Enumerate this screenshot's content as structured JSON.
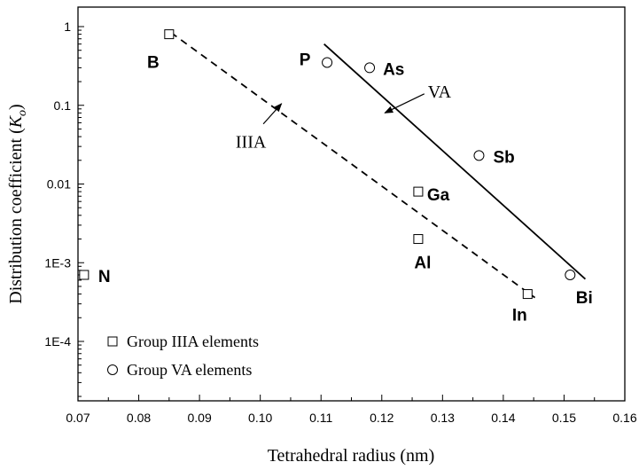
{
  "chart_data": {
    "type": "scatter",
    "xlabel": "Tetrahedral radius (nm)",
    "ylabel_main": "Distribution coefficient (",
    "ylabel_symbol": "K",
    "ylabel_sub": "o",
    "ylabel_close": ")",
    "xlim": [
      0.07,
      0.16
    ],
    "ylim": [
      0.0001,
      1
    ],
    "yscale": "log",
    "x_ticks": [
      {
        "value": 0.07,
        "label": "0.07"
      },
      {
        "value": 0.08,
        "label": "0.08"
      },
      {
        "value": 0.09,
        "label": "0.09"
      },
      {
        "value": 0.1,
        "label": "0.10"
      },
      {
        "value": 0.11,
        "label": "0.11"
      },
      {
        "value": 0.12,
        "label": "0.12"
      },
      {
        "value": 0.13,
        "label": "0.13"
      },
      {
        "value": 0.14,
        "label": "0.14"
      },
      {
        "value": 0.15,
        "label": "0.15"
      },
      {
        "value": 0.16,
        "label": "0.16"
      }
    ],
    "y_ticks": [
      {
        "value": 1,
        "label": "1"
      },
      {
        "value": 0.1,
        "label": "0.1"
      },
      {
        "value": 0.01,
        "label": "0.01"
      },
      {
        "value": 0.001,
        "label": "1E-3"
      },
      {
        "value": 0.0001,
        "label": "1E-4"
      }
    ],
    "series": [
      {
        "name": "Group IIIA elements",
        "marker": "square",
        "points": [
          {
            "label": "B",
            "x": 0.085,
            "y": 0.8
          },
          {
            "label": "N",
            "x": 0.071,
            "y": 0.0007
          },
          {
            "label": "Ga",
            "x": 0.126,
            "y": 0.008
          },
          {
            "label": "Al",
            "x": 0.126,
            "y": 0.002
          },
          {
            "label": "In",
            "x": 0.144,
            "y": 0.0004
          }
        ],
        "fit": {
          "x": [
            0.0853,
            0.1452
          ],
          "y": [
            0.84,
            0.00036
          ],
          "style": "dashed"
        }
      },
      {
        "name": "Group VA elements",
        "marker": "circle",
        "points": [
          {
            "label": "P",
            "x": 0.111,
            "y": 0.35
          },
          {
            "label": "As",
            "x": 0.118,
            "y": 0.3
          },
          {
            "label": "Sb",
            "x": 0.136,
            "y": 0.023
          },
          {
            "label": "Bi",
            "x": 0.151,
            "y": 0.0007
          }
        ],
        "fit": {
          "x": [
            0.1105,
            0.1535
          ],
          "y": [
            0.6,
            0.00062
          ],
          "style": "solid"
        }
      }
    ],
    "annotations": [
      {
        "text": "IIIA",
        "from": [
          0.1005,
          0.058
        ],
        "to": [
          0.1035,
          0.105
        ]
      },
      {
        "text": "VA",
        "from": [
          0.127,
          0.14
        ],
        "to": [
          0.1205,
          0.08
        ]
      }
    ],
    "legend_position": "bottom-left",
    "grid": false
  }
}
